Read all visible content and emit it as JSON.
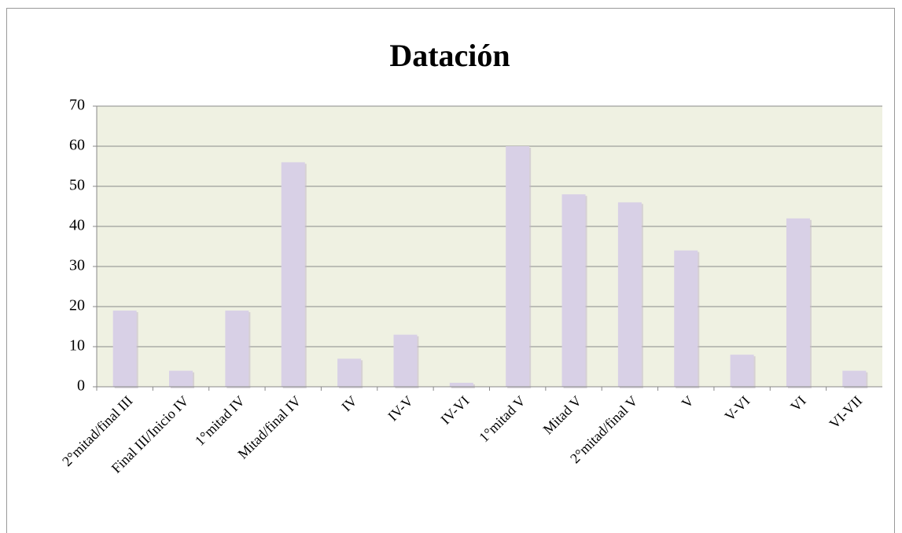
{
  "chart_data": {
    "type": "bar",
    "title": "Datación",
    "categories": [
      "2°mitad/final III",
      "Final III/Inicio IV",
      "1°mitad IV",
      "Mitad/final IV",
      "IV",
      "IV-V",
      "IV-VI",
      "1°mitad V",
      "Mitad V",
      "2°mitad/final V",
      "V",
      "V-VI",
      "VI",
      "VI-VII"
    ],
    "values": [
      19,
      4,
      19,
      56,
      7,
      13,
      1,
      60,
      48,
      46,
      34,
      8,
      42,
      4
    ],
    "color": "#d8d0e6",
    "ylim": [
      0,
      70
    ],
    "yticks": [
      0,
      10,
      20,
      30,
      40,
      50,
      60,
      70
    ],
    "grid": true
  }
}
